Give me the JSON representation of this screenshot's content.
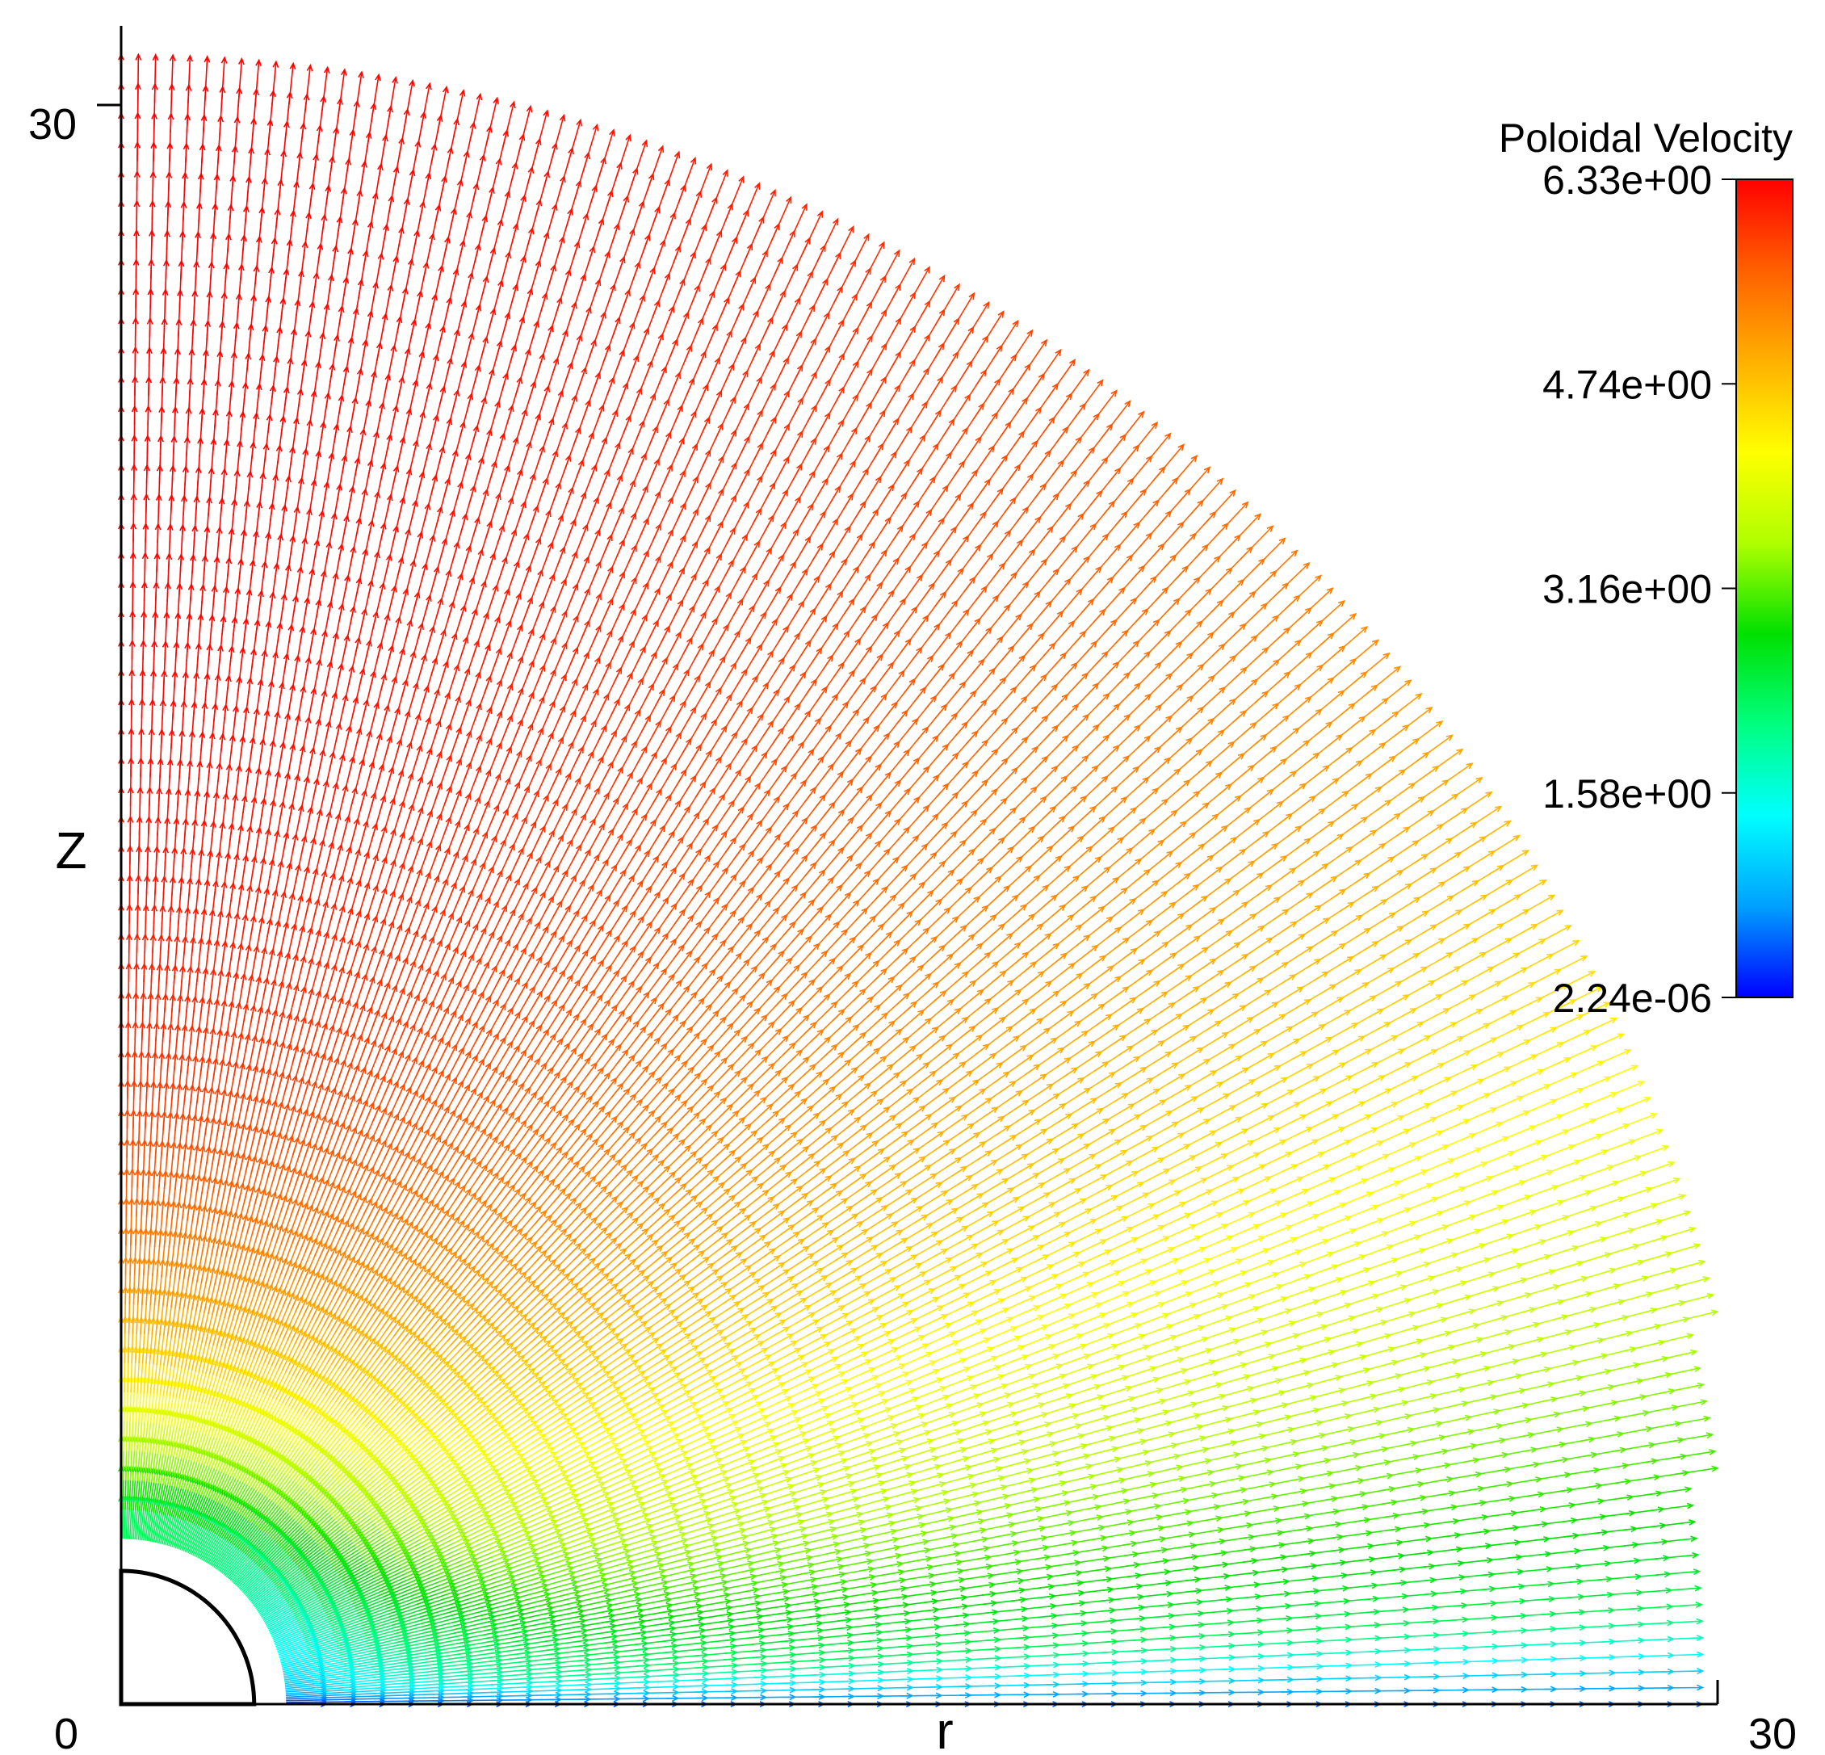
{
  "chart_data": {
    "type": "vector-field",
    "xlabel": "r",
    "ylabel": "Z",
    "xlim": [
      0,
      30
    ],
    "ylim": [
      0,
      30
    ],
    "x_ticks": [
      "0",
      "30"
    ],
    "y_ticks": [
      "30"
    ],
    "domain": "quarter-disc, outer radius ~30.8",
    "colorbar": {
      "title": "Poloidal Velocity",
      "ticks": [
        "6.33e+00",
        "4.74e+00",
        "3.16e+00",
        "1.58e+00",
        "2.24e-06"
      ],
      "min": 2.24e-06,
      "max": 6.33,
      "colormap": [
        "#0000ff",
        "#00a0ff",
        "#00ffff",
        "#00ff80",
        "#00e000",
        "#b0ff00",
        "#ffff00",
        "#ffb000",
        "#ff6000",
        "#ff0000"
      ]
    }
  }
}
